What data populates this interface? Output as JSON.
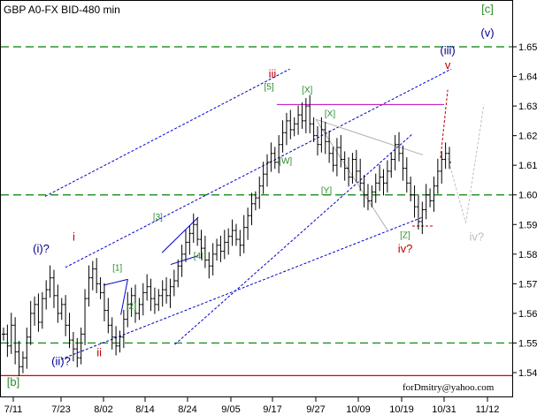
{
  "chart_data": {
    "type": "ohlc",
    "title": "GBP A0-FX BID-480 min",
    "watermark": "forDmitry@yahoo.com",
    "xlabels": [
      "7/11",
      "7/23",
      "8/02",
      "8/14",
      "8/24",
      "9/05",
      "9/17",
      "9/27",
      "10/09",
      "10/19",
      "10/31",
      "11/12"
    ],
    "yticks": [
      "1.54",
      "1.55",
      "1.56",
      "1.57",
      "1.58",
      "1.59",
      "1.60",
      "1.61",
      "1.62",
      "1.63",
      "1.64",
      "1.65"
    ],
    "ylim": [
      1.535,
      1.665
    ],
    "horizontal_levels": [
      {
        "value": 1.65,
        "style": "dashed",
        "color": "#008000"
      },
      {
        "value": 1.6,
        "style": "dashed",
        "color": "#008000"
      },
      {
        "value": 1.55,
        "style": "dashed",
        "color": "#008000"
      },
      {
        "value": 1.539,
        "style": "solid",
        "color": "#e00000"
      }
    ],
    "closes_approx": [
      1.553,
      1.549,
      1.556,
      1.547,
      1.542,
      1.545,
      1.552,
      1.56,
      1.563,
      1.557,
      1.565,
      1.568,
      1.572,
      1.566,
      1.56,
      1.563,
      1.556,
      1.551,
      1.548,
      1.545,
      1.553,
      1.565,
      1.572,
      1.575,
      1.57,
      1.567,
      1.561,
      1.556,
      1.552,
      1.549,
      1.552,
      1.558,
      1.563,
      1.566,
      1.56,
      1.563,
      1.567,
      1.569,
      1.565,
      1.563,
      1.566,
      1.568,
      1.566,
      1.569,
      1.571,
      1.576,
      1.58,
      1.584,
      1.587,
      1.59,
      1.585,
      1.582,
      1.578,
      1.576,
      1.58,
      1.583,
      1.581,
      1.584,
      1.586,
      1.588,
      1.585,
      1.583,
      1.589,
      1.593,
      1.597,
      1.599,
      1.603,
      1.607,
      1.611,
      1.614,
      1.611,
      1.617,
      1.621,
      1.625,
      1.622,
      1.624,
      1.627,
      1.625,
      1.63,
      1.624,
      1.62,
      1.617,
      1.622,
      1.618,
      1.614,
      1.61,
      1.616,
      1.612,
      1.609,
      1.606,
      1.612,
      1.608,
      1.604,
      1.6,
      1.598,
      1.601,
      1.604,
      1.606,
      1.604,
      1.608,
      1.612,
      1.617,
      1.614,
      1.609,
      1.604,
      1.6,
      1.596,
      1.591,
      1.595,
      1.6,
      1.598,
      1.603,
      1.608,
      1.612,
      1.614,
      1.611
    ],
    "wave_labels": [
      {
        "text": "(i)?",
        "x": "7/18",
        "y": 1.5805,
        "color": "#00008b",
        "size": 13
      },
      {
        "text": "i",
        "x": "7/26",
        "y": 1.5845,
        "color": "#c00000",
        "size": 13
      },
      {
        "text": "(ii)?",
        "x": "7/23",
        "y": 1.5425,
        "color": "#00008b",
        "size": 13
      },
      {
        "text": "ii",
        "x": "8/01",
        "y": 1.5455,
        "color": "#c00000",
        "size": 13
      },
      {
        "text": "iii",
        "x": "9/17",
        "y": 1.6395,
        "color": "#c00000",
        "size": 13
      },
      {
        "text": "iv?",
        "x": "10/20",
        "y": 1.5805,
        "color": "#c00000",
        "size": 13
      },
      {
        "text": "v",
        "x": "11/01",
        "y": 1.6425,
        "color": "#c00000",
        "size": 13
      },
      {
        "text": "(iii)",
        "x": "11/01",
        "y": 1.6475,
        "color": "#00008b",
        "size": 13
      },
      {
        "text": "(v)",
        "x": "11/12",
        "y": 1.6535,
        "color": "#00008b",
        "size": 13
      },
      {
        "text": "[c]",
        "x": "11/12",
        "y": 1.6615,
        "color": "#2e8b2e",
        "size": 13
      },
      {
        "text": "iv?",
        "x": "11/09",
        "y": 1.5845,
        "color": "#bdbdbd",
        "size": 13
      },
      {
        "text": "[b]",
        "x": "7/11",
        "y": 1.5355,
        "color": "#2e8b2e",
        "size": 13
      },
      {
        "text": "[1]",
        "x": "8/06",
        "y": 1.5745,
        "color": "#2e8b2e",
        "size": 10
      },
      {
        "text": "[2]",
        "x": "8/10",
        "y": 1.5615,
        "color": "#2e8b2e",
        "size": 10
      },
      {
        "text": "[3]",
        "x": "8/17",
        "y": 1.5915,
        "color": "#2e8b2e",
        "size": 10
      },
      {
        "text": "[4]",
        "x": "8/27",
        "y": 1.5785,
        "color": "#2e8b2e",
        "size": 10
      },
      {
        "text": "[5]",
        "x": "9/16",
        "y": 1.6355,
        "color": "#2e8b2e",
        "size": 10
      },
      {
        "text": "[X]",
        "x": "9/25",
        "y": 1.6345,
        "color": "#2e8b2e",
        "size": 10
      },
      {
        "text": "[X]",
        "x": "10/01",
        "y": 1.6265,
        "color": "#2e8b2e",
        "size": 10
      },
      {
        "text": "[W]",
        "x": "9/20",
        "y": 1.6105,
        "color": "#2e8b2e",
        "size": 10
      },
      {
        "text": "[Y]",
        "x": "9/30",
        "y": 1.6005,
        "color": "#2e8b2e",
        "size": 10
      },
      {
        "text": "[Z]",
        "x": "10/20",
        "y": 1.5855,
        "color": "#2e8b2e",
        "size": 10
      }
    ],
    "trend_lines": [
      {
        "from": [
          "7/24",
          1.5755
        ],
        "to": [
          "11/02",
          1.6425
        ],
        "color": "#0000cc",
        "dash": true
      },
      {
        "from": [
          "7/23",
          1.5445
        ],
        "to": [
          "10/25",
          1.5925
        ],
        "color": "#0000cc",
        "dash": true
      },
      {
        "from": [
          "8/21",
          1.5495
        ],
        "to": [
          "10/22",
          1.6205
        ],
        "color": "#0000cc",
        "dash": true
      },
      {
        "from": [
          "7/19",
          1.5995
        ],
        "to": [
          "9/21",
          1.6425
        ],
        "color": "#0000cc",
        "dash": true
      },
      {
        "from": [
          "9/18",
          1.6305
        ],
        "to": [
          "10/31",
          1.6305
        ],
        "color": "#c000c0",
        "dash": false
      },
      {
        "from": [
          "9/27",
          1.6255
        ],
        "to": [
          "10/25",
          1.6135
        ],
        "color": "#b0b0b0",
        "dash": false
      },
      {
        "from": [
          "9/27",
          1.6255
        ],
        "to": [
          "10/16",
          1.5875
        ],
        "color": "#b0b0b0",
        "dash": false
      },
      {
        "from": [
          "8/02",
          1.5695
        ],
        "to": [
          "8/09",
          1.5715
        ],
        "color": "#0000cc",
        "dash": false
      },
      {
        "from": [
          "8/07",
          1.5595
        ],
        "to": [
          "8/09",
          1.5715
        ],
        "color": "#0000cc",
        "dash": false
      },
      {
        "from": [
          "8/18",
          1.5805
        ],
        "to": [
          "8/27",
          1.5925
        ],
        "color": "#0000cc",
        "dash": false
      },
      {
        "from": [
          "8/20",
          1.5765
        ],
        "to": [
          "8/27",
          1.5795
        ],
        "color": "#0000cc",
        "dash": false
      },
      {
        "from": [
          "10/22",
          1.5895
        ],
        "to": [
          "10/28",
          1.5895
        ],
        "color": "#c00000",
        "dash": true
      },
      {
        "from": [
          "10/30",
          1.6125
        ],
        "to": [
          "11/01",
          1.6355
        ],
        "color": "#c00000",
        "dash": true
      },
      {
        "from": [
          "11/01",
          1.6125
        ],
        "to": [
          "11/06",
          1.5905
        ],
        "color": "#c0c0c0",
        "dash": true
      },
      {
        "from": [
          "11/06",
          1.5905
        ],
        "to": [
          "11/11",
          1.6305
        ],
        "color": "#c0c0c0",
        "dash": true
      }
    ]
  }
}
